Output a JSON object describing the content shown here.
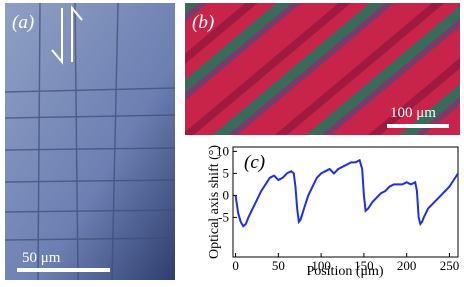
{
  "panel_a": {
    "label": "(a)",
    "scale_bar": "50 μm"
  },
  "panel_b": {
    "label": "(b)",
    "scale_bar": "100 μm"
  },
  "chart_data": {
    "type": "line",
    "annotation": "(c)",
    "x_label": "Position (μm)",
    "y_label": "Optical axis shift (°)",
    "x": [
      0,
      3,
      6,
      9,
      12,
      15,
      20,
      25,
      30,
      35,
      40,
      45,
      50,
      55,
      60,
      65,
      68,
      70,
      72,
      74,
      76,
      80,
      85,
      90,
      95,
      100,
      105,
      110,
      115,
      120,
      125,
      130,
      135,
      140,
      145,
      148,
      150,
      152,
      155,
      160,
      165,
      170,
      175,
      180,
      185,
      190,
      195,
      200,
      205,
      210,
      212,
      214,
      216,
      218,
      220,
      225,
      230,
      235,
      240,
      245,
      250,
      255,
      260
    ],
    "series": [
      {
        "color": "#1f2fe8",
        "values": [
          0,
          -4,
          -6,
          -7,
          -6.5,
          -5,
          -3,
          -1,
          1,
          2.5,
          4,
          4.5,
          3.5,
          4,
          5,
          5.5,
          5,
          2,
          -3,
          -6,
          -5.5,
          -3,
          0,
          2,
          4,
          5,
          5.5,
          6,
          5,
          6,
          6.5,
          7,
          7.5,
          7.5,
          8,
          6,
          0,
          -3.5,
          -3,
          -1.5,
          -0.5,
          0.5,
          1,
          2,
          2.5,
          2.5,
          2.5,
          3,
          2.5,
          3,
          1,
          -5,
          -6.5,
          -6,
          -5,
          -3,
          -2,
          -1,
          0,
          1,
          2,
          3.5,
          5
        ]
      }
    ],
    "xlim": [
      -3,
      260
    ],
    "ylim": [
      -14,
      11
    ],
    "xticks": [
      0,
      50,
      100,
      150,
      200,
      250
    ],
    "yticks": [
      -5,
      0,
      5,
      10
    ]
  }
}
